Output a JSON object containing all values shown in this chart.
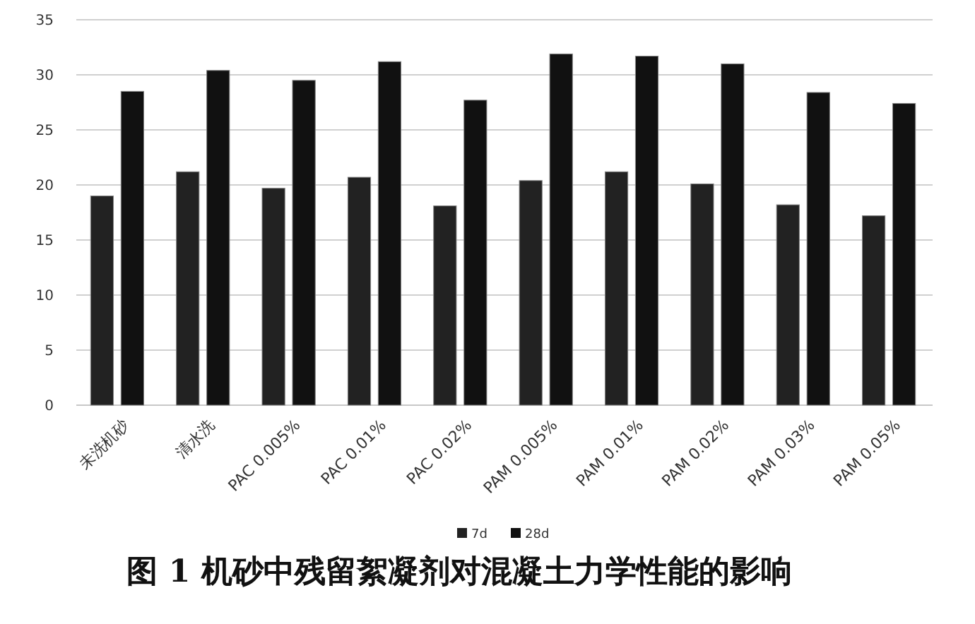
{
  "chart_data": {
    "type": "bar",
    "title": "图 1  机砂中残留絮凝剂对混凝土力学性能的影响",
    "categories": [
      "未洗机砂",
      "清水洗",
      "PAC 0.005%",
      "PAC 0.01%",
      "PAC 0.02%",
      "PAM 0.005%",
      "PAM 0.01%",
      "PAM 0.02%",
      "PAM 0.03%",
      "PAM 0.05%"
    ],
    "series": [
      {
        "name": "7d",
        "color": "#222222",
        "values": [
          19.0,
          21.2,
          19.7,
          20.7,
          18.1,
          20.4,
          21.2,
          20.1,
          18.2,
          17.2
        ]
      },
      {
        "name": "28d",
        "color": "#111111",
        "values": [
          28.5,
          30.4,
          29.5,
          31.2,
          27.7,
          31.9,
          31.7,
          31.0,
          28.4,
          27.4
        ]
      }
    ],
    "ylim": [
      0,
      35
    ],
    "yticks": [
      0,
      5,
      10,
      15,
      20,
      25,
      30,
      35
    ],
    "grid": "y",
    "legend": "bottom"
  }
}
